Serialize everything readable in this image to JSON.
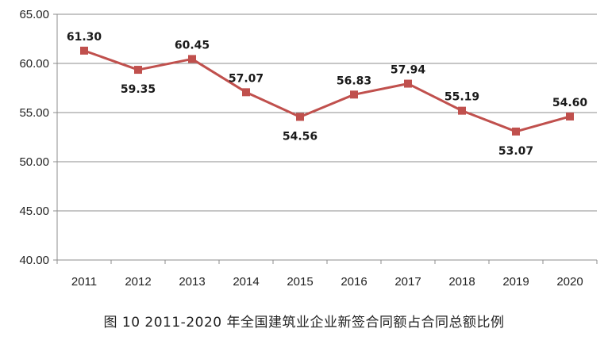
{
  "caption": "图 10  2011-2020 年全国建筑业企业新签合同额占合同总额比例",
  "chart_data": {
    "type": "line",
    "categories": [
      "2011",
      "2012",
      "2013",
      "2014",
      "2015",
      "2016",
      "2017",
      "2018",
      "2019",
      "2020"
    ],
    "series": [
      {
        "values": [
          61.3,
          59.35,
          60.45,
          57.07,
          54.56,
          56.83,
          57.94,
          55.19,
          53.07,
          54.6
        ],
        "labels": [
          "61.30",
          "59.35",
          "60.45",
          "57.07",
          "54.56",
          "56.83",
          "57.94",
          "55.19",
          "53.07",
          "54.60"
        ],
        "color": "#c0504d"
      }
    ],
    "yticks": [
      "40.00",
      "45.00",
      "50.00",
      "55.00",
      "60.00",
      "65.00"
    ],
    "ylim": [
      40,
      65
    ],
    "grid": true,
    "legend": false,
    "label_placement": [
      "above",
      "below",
      "above",
      "above",
      "below",
      "above",
      "above",
      "above",
      "below",
      "above"
    ]
  }
}
